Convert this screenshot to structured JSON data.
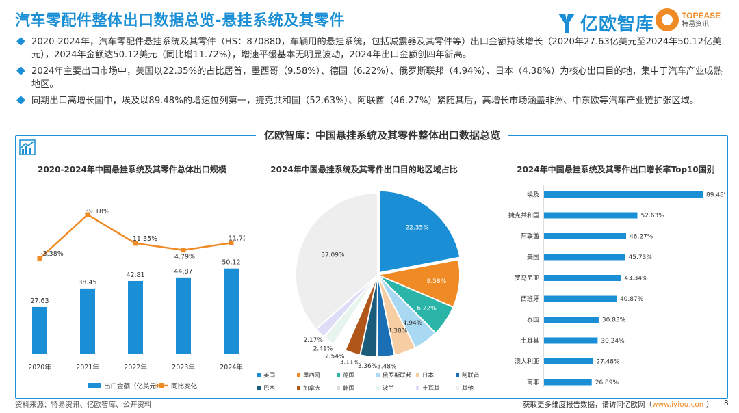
{
  "page": {
    "title": "汽车零配件整体出口数据总览-悬挂系统及其零件",
    "logo_yiou": "亿欧智库",
    "logo_topease_en": "TOPEASE",
    "logo_topease_cn": "特易资讯",
    "bullets": [
      "2020-2024年，汽车零配件悬挂系统及其零件（HS：870880，车辆用的悬挂系统，包括减震器及其零件等）出口金额持续增长（2020年27.63亿美元至2024年50.12亿美元），2024年金额达50.12美元（同比增11.72%），增速平缓基本无明显波动，2024年出口金额创四年新高。",
      "2024年主要出口市场中，美国以22.35%的占比居首，墨西哥（9.58%）、德国（6.22%）、俄罗斯联邦（4.94%）、日本（4.38%）为核心出口目的地，集中于汽车产业成熟地区。",
      "同期出口高增长国中，埃及以89.48%的增速位列第一，捷克共和国（52.63%）、阿联酋（46.27%）紧随其后，高增长市场涵盖非洲、中东欧等汽车产业链扩张区域。"
    ],
    "panel_title": "亿欧智库：中国悬挂系统及其零件整体出口数据总览",
    "source": "资料来源：特易资讯、亿欧智库、公开资料",
    "footer_text": "获取更多维度报告数据，请访问亿欧网（",
    "footer_link": "www.iyiou.com",
    "footer_close": "）",
    "page_number": "8"
  },
  "chart_data": [
    {
      "type": "bar",
      "title": "2020-2024年中国悬挂系统及其零件总体出口规模",
      "categories": [
        "2020年",
        "2021年",
        "2022年",
        "2023年",
        "2024年"
      ],
      "series": [
        {
          "name": "出口金额（亿美元）",
          "values": [
            27.63,
            38.45,
            42.81,
            44.87,
            50.12
          ],
          "labels": [
            "27.63",
            "38.45",
            "42.81",
            "44.87",
            "50.12"
          ],
          "color": "#1a8fd6"
        },
        {
          "name": "同比变化",
          "type": "line",
          "values": [
            -3.38,
            39.18,
            11.35,
            4.79,
            11.72
          ],
          "labels": [
            "-3.38%",
            "39.18%",
            "11.35%",
            "4.79%",
            "11.72%"
          ],
          "color": "#f08a24"
        }
      ]
    },
    {
      "type": "pie",
      "title": "2024年中国悬挂系统及其零件出口目的地区域占比",
      "slices": [
        {
          "name": "美国",
          "value": 22.35,
          "label": "22.35%",
          "color": "#1a8fd6"
        },
        {
          "name": "墨西哥",
          "value": 9.58,
          "label": "9.58%",
          "color": "#f08a24"
        },
        {
          "name": "德国",
          "value": 6.22,
          "label": "6.22%",
          "color": "#2bb5a8"
        },
        {
          "name": "俄罗斯联邦",
          "value": 4.94,
          "label": "4.94%",
          "color": "#a9d8f2"
        },
        {
          "name": "日本",
          "value": 4.38,
          "label": "4.38%",
          "color": "#f7cda3"
        },
        {
          "name": "阿联酋",
          "value": 3.48,
          "label": "3.48%",
          "color": "#1a6fb5"
        },
        {
          "name": "巴西",
          "value": 3.36,
          "label": "3.36%",
          "color": "#1b5c7a"
        },
        {
          "name": "加拿大",
          "value": 3.11,
          "label": "3.11%",
          "color": "#b0561a"
        },
        {
          "name": "韩国",
          "value": 2.54,
          "label": "2.54%",
          "color": "#ffffff"
        },
        {
          "name": "波兰",
          "value": 2.41,
          "label": "2.41%",
          "color": "#e8f5ee"
        },
        {
          "name": "土耳其",
          "value": 2.17,
          "label": "2.17%",
          "color": "#ddddf7"
        },
        {
          "name": "其他",
          "value": 37.09,
          "label": "37.09%",
          "color": "#eeeeee"
        }
      ]
    },
    {
      "type": "bar",
      "orientation": "horizontal",
      "title": "2024年中国悬挂系统及其零件出口增长率Top10国别",
      "categories": [
        "埃及",
        "捷克共和国",
        "阿联酋",
        "美国",
        "罗马尼亚",
        "西班牙",
        "泰国",
        "土耳其",
        "澳大利亚",
        "南非"
      ],
      "values": [
        89.48,
        52.63,
        46.27,
        45.73,
        43.34,
        40.87,
        30.83,
        30.24,
        27.48,
        26.89
      ],
      "labels": [
        "89.48%",
        "52.63%",
        "46.27%",
        "45.73%",
        "43.34%",
        "40.87%",
        "30.83%",
        "30.24%",
        "27.48%",
        "26.89%"
      ],
      "color": "#1a8fd6"
    }
  ]
}
